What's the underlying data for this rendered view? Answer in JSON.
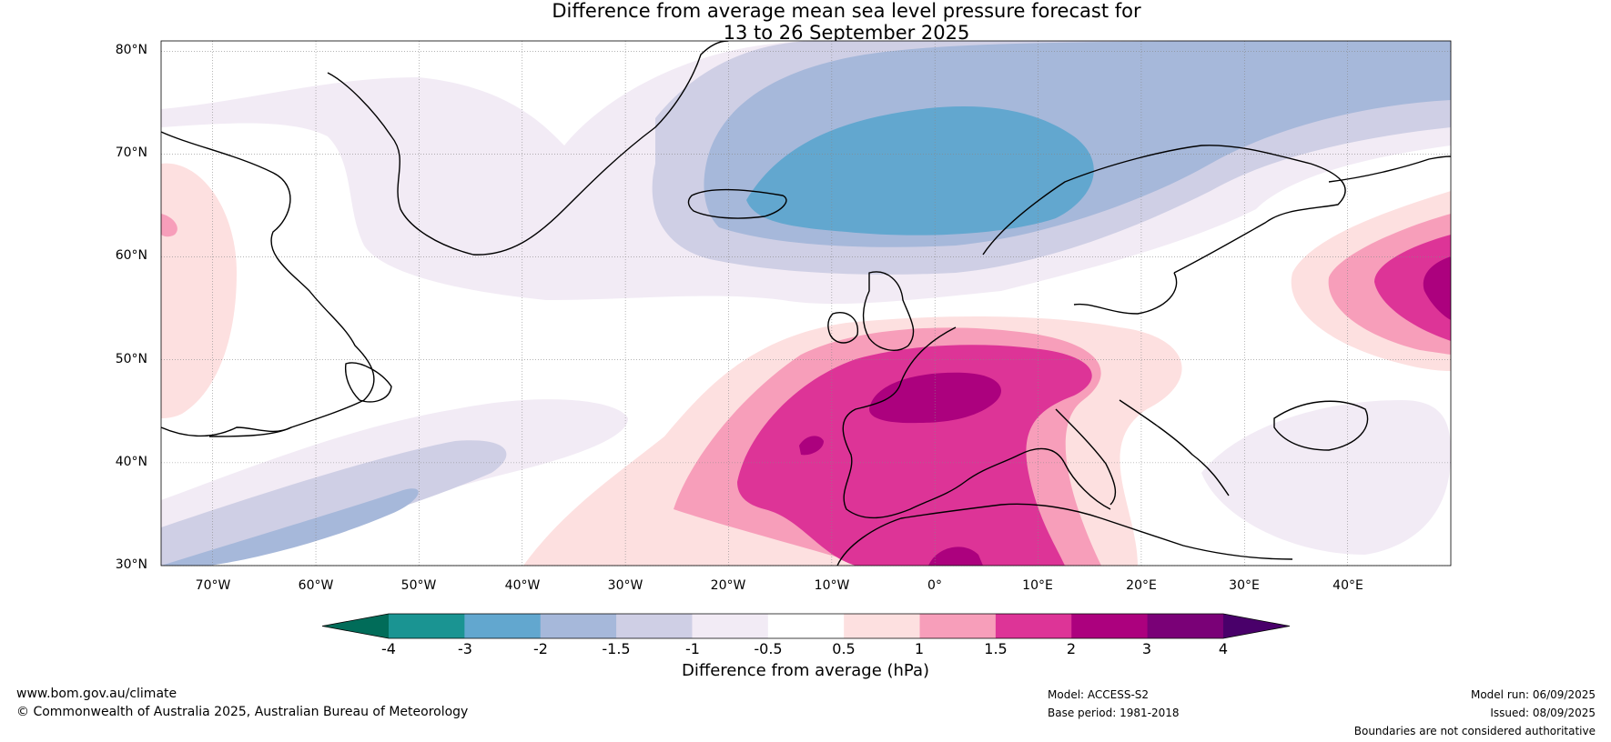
{
  "title": {
    "line1": "Difference from average mean sea level pressure forecast for",
    "line2": "13 to 26 September 2025"
  },
  "axes": {
    "lat_labels": [
      "80°N",
      "70°N",
      "60°N",
      "50°N",
      "40°N",
      "30°N"
    ],
    "lon_labels": [
      "70°W",
      "60°W",
      "50°W",
      "40°W",
      "30°W",
      "20°W",
      "10°W",
      "0°",
      "10°E",
      "20°E",
      "30°E",
      "40°E"
    ],
    "lat_range": [
      30,
      81
    ],
    "lon_range": [
      -75,
      50
    ]
  },
  "colorbar": {
    "label": "Difference from average (hPa)",
    "ticks": [
      "-4",
      "-3",
      "-2",
      "-1.5",
      "-1",
      "-0.5",
      "0.5",
      "1",
      "1.5",
      "2",
      "3",
      "4"
    ],
    "colors": [
      "#1a9492",
      "#62a7cf",
      "#a6b8da",
      "#cfcfe5",
      "#f2ebf5",
      "#ffffff",
      "#fde0e0",
      "#f79eba",
      "#dd3497",
      "#ac017e",
      "#7a0177"
    ],
    "under_color": "#016c59",
    "over_color": "#49006a"
  },
  "footer": {
    "website": "www.bom.gov.au/climate",
    "copyright": "© Commonwealth of Australia 2025, Australian Bureau of Meteorology",
    "model": "Model: ACCESS-S2",
    "base_period": "Base period: 1981-2018",
    "model_run": "Model run: 06/09/2025",
    "issued": "Issued: 08/09/2025",
    "disclaimer": "Boundaries are not considered authoritative"
  }
}
